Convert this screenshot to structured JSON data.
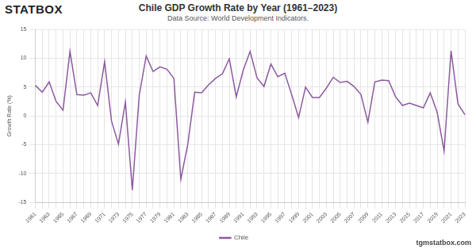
{
  "chart_data": {
    "type": "line",
    "title": "Chile GDP Growth Rate by Year (1961–2023)",
    "subtitle": "Data Source: World Development Indicators.",
    "annotations": [
      "STATBOX",
      "tgmstatbox.com"
    ],
    "y_label": "Growth Rate (%)",
    "categories": [
      "1961",
      null,
      "1963",
      null,
      "1965",
      null,
      "1967",
      null,
      "1969",
      null,
      "1971",
      null,
      "1973",
      null,
      "1975",
      null,
      "1977",
      null,
      "1979",
      null,
      "1981",
      null,
      "1983",
      null,
      "1985",
      null,
      "1987",
      null,
      "1989",
      null,
      "1991",
      null,
      "1993",
      null,
      "1995",
      null,
      "1997",
      null,
      "1999",
      null,
      "2001",
      null,
      "2003",
      null,
      "2005",
      null,
      "2007",
      null,
      "2009",
      null,
      "2011",
      null,
      "2013",
      null,
      "2015",
      null,
      "2017",
      null,
      "2019",
      null,
      "2021",
      null,
      "2023"
    ],
    "series": [
      {
        "name": "Chile",
        "color": "#8b5a9f",
        "values": [
          5.3,
          4.1,
          5.9,
          2.5,
          1.0,
          11.2,
          3.7,
          3.6,
          4.0,
          1.8,
          9.4,
          -0.9,
          -4.9,
          2.4,
          -12.9,
          3.6,
          10.4,
          7.7,
          8.5,
          8.1,
          6.5,
          -11.0,
          -5.0,
          4.1,
          4.0,
          5.4,
          6.5,
          7.3,
          9.9,
          3.3,
          7.9,
          11.2,
          6.6,
          5.1,
          9.0,
          6.8,
          7.4,
          3.7,
          -0.3,
          5.0,
          3.2,
          3.2,
          4.8,
          6.7,
          5.8,
          6.0,
          5.1,
          3.7,
          -1.1,
          5.9,
          6.2,
          6.1,
          3.3,
          1.8,
          2.2,
          1.8,
          1.4,
          4.0,
          0.6,
          -6.1,
          11.3,
          2.1,
          0.2
        ]
      }
    ],
    "ylim": [
      -15,
      15
    ],
    "yticks": [
      -15,
      -10,
      -5,
      0,
      5,
      10,
      15
    ],
    "grid": true,
    "legend": "bottom"
  }
}
